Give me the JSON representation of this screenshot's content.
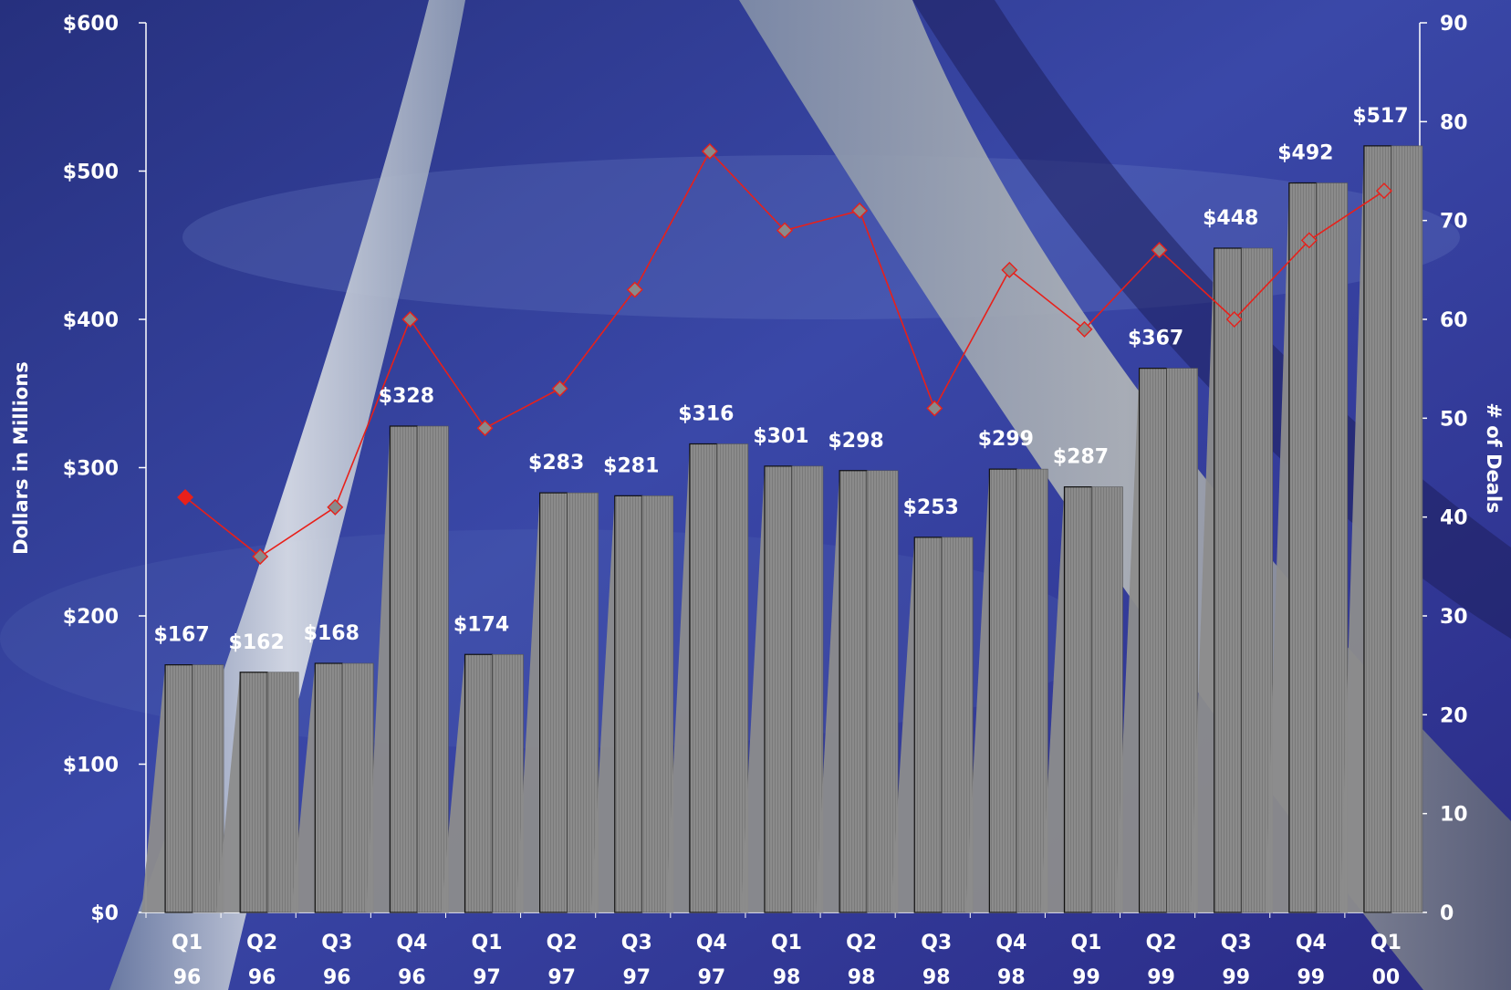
{
  "chart_data": {
    "type": "bar",
    "categories": [
      {
        "quarter": "Q1",
        "year": "96"
      },
      {
        "quarter": "Q2",
        "year": "96"
      },
      {
        "quarter": "Q3",
        "year": "96"
      },
      {
        "quarter": "Q4",
        "year": "96"
      },
      {
        "quarter": "Q1",
        "year": "97"
      },
      {
        "quarter": "Q2",
        "year": "97"
      },
      {
        "quarter": "Q3",
        "year": "97"
      },
      {
        "quarter": "Q4",
        "year": "97"
      },
      {
        "quarter": "Q1",
        "year": "98"
      },
      {
        "quarter": "Q2",
        "year": "98"
      },
      {
        "quarter": "Q3",
        "year": "98"
      },
      {
        "quarter": "Q4",
        "year": "98"
      },
      {
        "quarter": "Q1",
        "year": "99"
      },
      {
        "quarter": "Q2",
        "year": "99"
      },
      {
        "quarter": "Q3",
        "year": "99"
      },
      {
        "quarter": "Q4",
        "year": "99"
      },
      {
        "quarter": "Q1",
        "year": "00"
      }
    ],
    "series": [
      {
        "kind": "bar",
        "axis": "left",
        "values": [
          167,
          162,
          168,
          328,
          174,
          283,
          281,
          316,
          301,
          298,
          253,
          299,
          287,
          367,
          448,
          492,
          517
        ],
        "labels": [
          "$167",
          "$162",
          "$168",
          "$328",
          "$174",
          "$283",
          "$281",
          "$316",
          "$301",
          "$298",
          "$253",
          "$299",
          "$287",
          "$367",
          "$448",
          "$492",
          "$517"
        ],
        "color": "#8a8a8a"
      },
      {
        "kind": "line",
        "axis": "right",
        "values": [
          42,
          36,
          41,
          60,
          49,
          53,
          63,
          77,
          69,
          71,
          51,
          65,
          59,
          67,
          60,
          68,
          73
        ],
        "color": "#e8201a",
        "marker": "diamond"
      }
    ],
    "ylabel": "Dollars in Millions",
    "y2label": "# of Deals",
    "ylim": [
      0,
      600
    ],
    "y2lim": [
      0,
      90
    ],
    "y_ticks": [
      "$0",
      "$100",
      "$200",
      "$300",
      "$400",
      "$500",
      "$600"
    ],
    "y2_ticks": [
      "0",
      "10",
      "20",
      "30",
      "40",
      "50",
      "60",
      "70",
      "80",
      "90"
    ],
    "grid": false,
    "legend": "none"
  }
}
